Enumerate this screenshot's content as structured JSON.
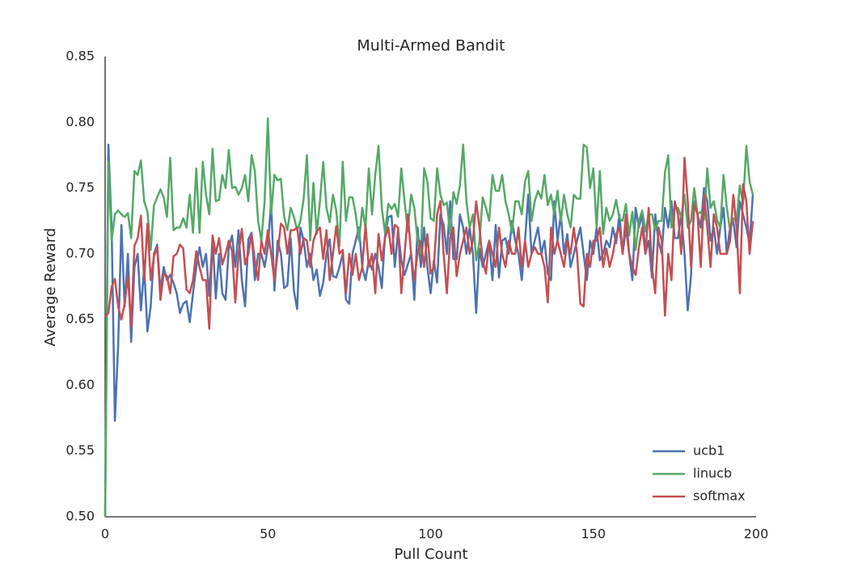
{
  "chart_data": {
    "type": "line",
    "title": "Multi-Armed Bandit",
    "xlabel": "Pull Count",
    "ylabel": "Average Reward",
    "x": [
      0,
      1,
      2,
      3,
      4,
      5,
      6,
      7,
      8,
      9,
      10,
      11,
      12,
      13,
      14,
      15,
      16,
      17,
      18,
      19,
      20,
      21,
      22,
      23,
      24,
      25,
      26,
      27,
      28,
      29,
      30,
      31,
      32,
      33,
      34,
      35,
      36,
      37,
      38,
      39,
      40,
      41,
      42,
      43,
      44,
      45,
      46,
      47,
      48,
      49,
      50,
      51,
      52,
      53,
      54,
      55,
      56,
      57,
      58,
      59,
      60,
      61,
      62,
      63,
      64,
      65,
      66,
      67,
      68,
      69,
      70,
      71,
      72,
      73,
      74,
      75,
      76,
      77,
      78,
      79,
      80,
      81,
      82,
      83,
      84,
      85,
      86,
      87,
      88,
      89,
      90,
      91,
      92,
      93,
      94,
      95,
      96,
      97,
      98,
      99,
      100,
      101,
      102,
      103,
      104,
      105,
      106,
      107,
      108,
      109,
      110,
      111,
      112,
      113,
      114,
      115,
      116,
      117,
      118,
      119,
      120,
      121,
      122,
      123,
      124,
      125,
      126,
      127,
      128,
      129,
      130,
      131,
      132,
      133,
      134,
      135,
      136,
      137,
      138,
      139,
      140,
      141,
      142,
      143,
      144,
      145,
      146,
      147,
      148,
      149,
      150,
      151,
      152,
      153,
      154,
      155,
      156,
      157,
      158,
      159,
      160,
      161,
      162,
      163,
      164,
      165,
      166,
      167,
      168,
      169,
      170,
      171,
      172,
      173,
      174,
      175,
      176,
      177,
      178,
      179,
      180,
      181,
      182,
      183,
      184,
      185,
      186,
      187,
      188,
      189,
      190,
      191,
      192,
      193,
      194,
      195,
      196,
      197,
      198,
      199
    ],
    "series": [
      {
        "name": "ucb1",
        "color": "#4c72b0",
        "values": [
          0.5,
          0.783,
          0.72,
          0.573,
          0.63,
          0.722,
          0.66,
          0.7,
          0.633,
          0.69,
          0.7,
          0.657,
          0.69,
          0.641,
          0.66,
          0.7,
          0.707,
          0.672,
          0.69,
          0.68,
          0.684,
          0.678,
          0.67,
          0.655,
          0.662,
          0.664,
          0.648,
          0.67,
          0.69,
          0.705,
          0.69,
          0.7,
          0.668,
          0.712,
          0.666,
          0.7,
          0.67,
          0.665,
          0.705,
          0.714,
          0.69,
          0.718,
          0.68,
          0.66,
          0.711,
          0.716,
          0.68,
          0.7,
          0.7,
          0.69,
          0.705,
          0.74,
          0.672,
          0.71,
          0.7,
          0.674,
          0.676,
          0.712,
          0.672,
          0.658,
          0.72,
          0.71,
          0.69,
          0.7,
          0.68,
          0.688,
          0.668,
          0.678,
          0.7,
          0.711,
          0.683,
          0.682,
          0.69,
          0.7,
          0.665,
          0.662,
          0.7,
          0.71,
          0.72,
          0.69,
          0.68,
          0.695,
          0.688,
          0.7,
          0.69,
          0.674,
          0.714,
          0.728,
          0.729,
          0.69,
          0.718,
          0.695,
          0.684,
          0.692,
          0.7,
          0.665,
          0.72,
          0.69,
          0.72,
          0.69,
          0.67,
          0.695,
          0.678,
          0.73,
          0.722,
          0.7,
          0.74,
          0.696,
          0.696,
          0.73,
          0.72,
          0.7,
          0.72,
          0.7,
          0.655,
          0.704,
          0.69,
          0.7,
          0.71,
          0.68,
          0.722,
          0.682,
          0.71,
          0.712,
          0.7,
          0.725,
          0.71,
          0.7,
          0.68,
          0.71,
          0.745,
          0.7,
          0.71,
          0.72,
          0.7,
          0.71,
          0.685,
          0.68,
          0.74,
          0.71,
          0.73,
          0.7,
          0.715,
          0.69,
          0.7,
          0.71,
          0.72,
          0.7,
          0.68,
          0.71,
          0.7,
          0.72,
          0.695,
          0.7,
          0.71,
          0.705,
          0.72,
          0.708,
          0.73,
          0.7,
          0.72,
          0.7,
          0.68,
          0.735,
          0.72,
          0.73,
          0.7,
          0.71,
          0.682,
          0.73,
          0.71,
          0.7,
          0.735,
          0.72,
          0.74,
          0.712,
          0.712,
          0.73,
          0.7,
          0.657,
          0.683,
          0.74,
          0.73,
          0.72,
          0.75,
          0.74,
          0.71,
          0.72,
          0.7,
          0.72,
          0.735,
          0.7,
          0.72,
          0.725,
          0.705,
          0.74,
          0.73,
          0.72,
          0.708,
          0.745
        ]
      },
      {
        "name": "linucb",
        "color": "#55a868",
        "values": [
          0.5,
          0.77,
          0.71,
          0.73,
          0.733,
          0.73,
          0.728,
          0.731,
          0.712,
          0.763,
          0.76,
          0.771,
          0.74,
          0.732,
          0.703,
          0.737,
          0.743,
          0.749,
          0.743,
          0.728,
          0.773,
          0.718,
          0.72,
          0.72,
          0.727,
          0.72,
          0.745,
          0.716,
          0.765,
          0.716,
          0.77,
          0.745,
          0.73,
          0.78,
          0.74,
          0.741,
          0.76,
          0.75,
          0.779,
          0.75,
          0.751,
          0.745,
          0.75,
          0.76,
          0.74,
          0.775,
          0.763,
          0.725,
          0.71,
          0.74,
          0.803,
          0.73,
          0.76,
          0.756,
          0.757,
          0.728,
          0.718,
          0.735,
          0.728,
          0.718,
          0.725,
          0.742,
          0.775,
          0.71,
          0.754,
          0.715,
          0.74,
          0.77,
          0.735,
          0.724,
          0.745,
          0.733,
          0.706,
          0.77,
          0.725,
          0.743,
          0.743,
          0.73,
          0.71,
          0.735,
          0.72,
          0.765,
          0.73,
          0.76,
          0.782,
          0.735,
          0.716,
          0.738,
          0.734,
          0.738,
          0.728,
          0.765,
          0.74,
          0.717,
          0.745,
          0.735,
          0.71,
          0.7,
          0.765,
          0.755,
          0.727,
          0.725,
          0.765,
          0.745,
          0.737,
          0.739,
          0.715,
          0.747,
          0.738,
          0.752,
          0.783,
          0.74,
          0.72,
          0.73,
          0.695,
          0.709,
          0.743,
          0.735,
          0.725,
          0.76,
          0.748,
          0.748,
          0.76,
          0.74,
          0.73,
          0.716,
          0.74,
          0.74,
          0.73,
          0.755,
          0.763,
          0.725,
          0.74,
          0.748,
          0.742,
          0.76,
          0.737,
          0.745,
          0.73,
          0.748,
          0.725,
          0.745,
          0.73,
          0.72,
          0.745,
          0.742,
          0.742,
          0.783,
          0.781,
          0.75,
          0.765,
          0.72,
          0.763,
          0.715,
          0.735,
          0.725,
          0.73,
          0.741,
          0.727,
          0.725,
          0.738,
          0.714,
          0.732,
          0.703,
          0.725,
          0.733,
          0.717,
          0.73,
          0.73,
          0.718,
          0.725,
          0.725,
          0.762,
          0.775,
          0.72,
          0.735,
          0.735,
          0.728,
          0.745,
          0.72,
          0.725,
          0.75,
          0.73,
          0.732,
          0.726,
          0.765,
          0.735,
          0.74,
          0.726,
          0.72,
          0.76,
          0.735,
          0.718,
          0.727,
          0.725,
          0.752,
          0.738,
          0.782,
          0.755,
          0.745
        ]
      },
      {
        "name": "softmax",
        "color": "#c44e52",
        "values": [
          0.652,
          0.655,
          0.675,
          0.681,
          0.66,
          0.65,
          0.662,
          0.683,
          0.645,
          0.706,
          0.712,
          0.729,
          0.68,
          0.723,
          0.68,
          0.698,
          0.705,
          0.665,
          0.685,
          0.683,
          0.67,
          0.698,
          0.7,
          0.707,
          0.704,
          0.673,
          0.67,
          0.68,
          0.702,
          0.69,
          0.68,
          0.68,
          0.643,
          0.714,
          0.7,
          0.712,
          0.692,
          0.7,
          0.71,
          0.702,
          0.663,
          0.7,
          0.719,
          0.692,
          0.7,
          0.715,
          0.695,
          0.68,
          0.71,
          0.7,
          0.718,
          0.7,
          0.68,
          0.7,
          0.723,
          0.72,
          0.7,
          0.718,
          0.718,
          0.72,
          0.7,
          0.712,
          0.71,
          0.69,
          0.71,
          0.717,
          0.72,
          0.696,
          0.718,
          0.68,
          0.7,
          0.721,
          0.7,
          0.703,
          0.67,
          0.7,
          0.684,
          0.7,
          0.68,
          0.69,
          0.722,
          0.69,
          0.7,
          0.67,
          0.715,
          0.695,
          0.712,
          0.72,
          0.7,
          0.722,
          0.72,
          0.67,
          0.7,
          0.73,
          0.7,
          0.68,
          0.7,
          0.71,
          0.69,
          0.715,
          0.685,
          0.69,
          0.73,
          0.74,
          0.7,
          0.67,
          0.712,
          0.72,
          0.683,
          0.7,
          0.71,
          0.72,
          0.7,
          0.71,
          0.74,
          0.72,
          0.695,
          0.685,
          0.71,
          0.7,
          0.69,
          0.72,
          0.7,
          0.69,
          0.71,
          0.7,
          0.7,
          0.72,
          0.69,
          0.71,
          0.69,
          0.7,
          0.705,
          0.7,
          0.7,
          0.69,
          0.663,
          0.72,
          0.7,
          0.71,
          0.7,
          0.69,
          0.71,
          0.7,
          0.72,
          0.7,
          0.662,
          0.66,
          0.7,
          0.69,
          0.71,
          0.71,
          0.72,
          0.69,
          0.704,
          0.69,
          0.7,
          0.715,
          0.72,
          0.7,
          0.73,
          0.7,
          0.69,
          0.684,
          0.705,
          0.72,
          0.7,
          0.735,
          0.69,
          0.67,
          0.72,
          0.71,
          0.653,
          0.7,
          0.68,
          0.74,
          0.73,
          0.7,
          0.773,
          0.74,
          0.69,
          0.738,
          0.73,
          0.69,
          0.745,
          0.72,
          0.69,
          0.73,
          0.72,
          0.7,
          0.7,
          0.7,
          0.71,
          0.745,
          0.72,
          0.67,
          0.753,
          0.74,
          0.7,
          0.725
        ]
      }
    ],
    "xlim": [
      0,
      200
    ],
    "xticks": [
      0,
      50,
      100,
      150,
      200
    ],
    "ylim": [
      0.5,
      0.85
    ],
    "yticks": [
      {
        "value": 0.5,
        "label": "0.50"
      },
      {
        "value": 0.55,
        "label": "0.55"
      },
      {
        "value": 0.6,
        "label": "0.60"
      },
      {
        "value": 0.65,
        "label": "0.65"
      },
      {
        "value": 0.7,
        "label": "0.70"
      },
      {
        "value": 0.75,
        "label": "0.75"
      },
      {
        "value": 0.8,
        "label": "0.80"
      },
      {
        "value": 0.85,
        "label": "0.85"
      }
    ],
    "grid": false,
    "legend": "lower right"
  }
}
